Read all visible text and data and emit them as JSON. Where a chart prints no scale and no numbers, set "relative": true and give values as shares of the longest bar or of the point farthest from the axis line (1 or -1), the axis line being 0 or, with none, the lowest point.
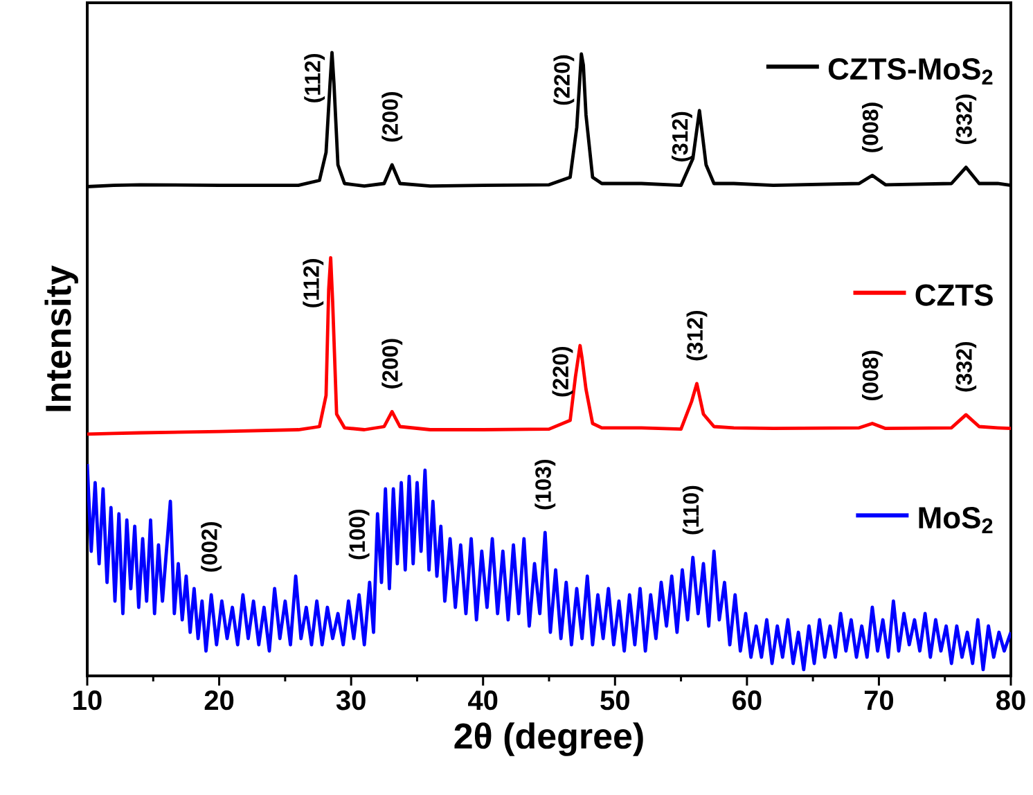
{
  "chart_data": {
    "type": "line",
    "relative": true,
    "xlabel": "2θ (degree)",
    "ylabel": "Intensity",
    "xlim": [
      10,
      80
    ],
    "xticks": [
      10,
      20,
      30,
      40,
      50,
      60,
      70,
      80
    ],
    "series": [
      {
        "name": "CZTS-MoS$_{2}$",
        "color": "#000000",
        "x": [
          10,
          12,
          14,
          20,
          26,
          27.6,
          28.1,
          28.4,
          28.55,
          28.7,
          29.0,
          29.5,
          31,
          32.5,
          33.1,
          33.7,
          36,
          40,
          45,
          46.6,
          47.1,
          47.45,
          47.6,
          47.8,
          48.3,
          49,
          52,
          55,
          55.9,
          56.4,
          56.9,
          57.5,
          59,
          62,
          68.5,
          69.5,
          70.5,
          75.5,
          76.6,
          77.6,
          79,
          80
        ],
        "values": [
          0.785,
          0.787,
          0.788,
          0.787,
          0.787,
          0.795,
          0.84,
          0.95,
          1.0,
          0.95,
          0.82,
          0.79,
          0.786,
          0.79,
          0.82,
          0.79,
          0.786,
          0.787,
          0.788,
          0.8,
          0.88,
          0.998,
          0.98,
          0.9,
          0.8,
          0.79,
          0.79,
          0.787,
          0.83,
          0.907,
          0.82,
          0.79,
          0.79,
          0.787,
          0.79,
          0.803,
          0.788,
          0.79,
          0.816,
          0.79,
          0.79,
          0.787
        ]
      },
      {
        "name": "CZTS",
        "color": "#ff0000",
        "x": [
          10,
          12,
          14,
          20,
          26,
          27.6,
          28.1,
          28.3,
          28.45,
          28.6,
          28.9,
          29.5,
          31,
          32.5,
          33.1,
          33.7,
          36,
          40,
          45,
          46.6,
          47.0,
          47.35,
          47.5,
          47.8,
          48.3,
          49,
          52,
          55,
          55.8,
          56.2,
          56.7,
          57.5,
          59,
          62,
          68.5,
          69.5,
          70.5,
          75.5,
          76.6,
          77.6,
          79,
          80
        ],
        "values": [
          0.388,
          0.389,
          0.39,
          0.392,
          0.395,
          0.4,
          0.45,
          0.62,
          0.671,
          0.6,
          0.42,
          0.398,
          0.395,
          0.4,
          0.424,
          0.4,
          0.395,
          0.395,
          0.396,
          0.41,
          0.48,
          0.53,
          0.51,
          0.46,
          0.405,
          0.398,
          0.398,
          0.396,
          0.44,
          0.469,
          0.42,
          0.4,
          0.398,
          0.397,
          0.398,
          0.405,
          0.397,
          0.398,
          0.419,
          0.4,
          0.398,
          0.397
        ]
      },
      {
        "name": "MoS$_{2}$",
        "color": "#0000ff",
        "x": [
          10.0,
          10.3,
          10.6,
          10.9,
          11.2,
          11.5,
          11.8,
          12.1,
          12.4,
          12.7,
          13.0,
          13.3,
          13.6,
          13.9,
          14.2,
          14.5,
          14.8,
          15.1,
          15.4,
          15.7,
          16.0,
          16.3,
          16.6,
          16.9,
          17.2,
          17.5,
          17.8,
          18.1,
          18.4,
          18.7,
          19.0,
          19.4,
          19.8,
          20.2,
          20.6,
          21.0,
          21.4,
          21.8,
          22.2,
          22.6,
          23.0,
          23.4,
          23.8,
          24.2,
          24.6,
          25.0,
          25.4,
          25.8,
          26.2,
          26.6,
          27.0,
          27.4,
          27.8,
          28.2,
          28.6,
          29.0,
          29.4,
          29.8,
          30.2,
          30.6,
          31.0,
          31.4,
          31.7,
          32.0,
          32.3,
          32.6,
          32.9,
          33.2,
          33.5,
          33.8,
          34.1,
          34.4,
          34.7,
          35.0,
          35.3,
          35.6,
          35.9,
          36.2,
          36.5,
          36.8,
          37.1,
          37.5,
          37.9,
          38.3,
          38.7,
          39.1,
          39.5,
          39.9,
          40.3,
          40.7,
          41.1,
          41.5,
          41.9,
          42.3,
          42.7,
          43.1,
          43.5,
          43.9,
          44.3,
          44.7,
          45.1,
          45.5,
          45.9,
          46.3,
          46.7,
          47.1,
          47.5,
          47.9,
          48.3,
          48.7,
          49.1,
          49.5,
          49.9,
          50.3,
          50.7,
          51.1,
          51.5,
          51.9,
          52.3,
          52.7,
          53.1,
          53.5,
          53.9,
          54.3,
          54.7,
          55.1,
          55.5,
          55.9,
          56.3,
          56.7,
          57.1,
          57.5,
          57.9,
          58.3,
          58.7,
          59.1,
          59.5,
          59.9,
          60.3,
          60.7,
          61.1,
          61.5,
          61.9,
          62.3,
          62.7,
          63.1,
          63.5,
          63.9,
          64.3,
          64.7,
          65.1,
          65.5,
          65.9,
          66.3,
          66.7,
          67.1,
          67.5,
          67.9,
          68.3,
          68.7,
          69.1,
          69.5,
          69.9,
          70.3,
          70.7,
          71.1,
          71.5,
          71.9,
          72.3,
          72.7,
          73.1,
          73.5,
          73.9,
          74.3,
          74.7,
          75.1,
          75.5,
          75.9,
          76.3,
          76.7,
          77.1,
          77.5,
          77.9,
          78.3,
          78.7,
          79.1,
          79.5,
          80.0
        ],
        "values": [
          0.34,
          0.2,
          0.31,
          0.18,
          0.3,
          0.15,
          0.27,
          0.12,
          0.26,
          0.1,
          0.25,
          0.14,
          0.24,
          0.11,
          0.22,
          0.12,
          0.25,
          0.1,
          0.21,
          0.12,
          0.2,
          0.28,
          0.1,
          0.18,
          0.09,
          0.16,
          0.07,
          0.14,
          0.06,
          0.12,
          0.04,
          0.13,
          0.05,
          0.12,
          0.06,
          0.11,
          0.05,
          0.13,
          0.06,
          0.12,
          0.05,
          0.11,
          0.04,
          0.14,
          0.06,
          0.12,
          0.05,
          0.16,
          0.06,
          0.11,
          0.05,
          0.12,
          0.05,
          0.11,
          0.06,
          0.1,
          0.05,
          0.12,
          0.06,
          0.13,
          0.05,
          0.15,
          0.07,
          0.26,
          0.15,
          0.3,
          0.14,
          0.3,
          0.18,
          0.31,
          0.17,
          0.32,
          0.18,
          0.31,
          0.2,
          0.33,
          0.17,
          0.28,
          0.16,
          0.24,
          0.12,
          0.22,
          0.11,
          0.21,
          0.1,
          0.22,
          0.09,
          0.2,
          0.11,
          0.22,
          0.1,
          0.2,
          0.09,
          0.21,
          0.1,
          0.22,
          0.08,
          0.18,
          0.1,
          0.23,
          0.07,
          0.17,
          0.06,
          0.15,
          0.05,
          0.14,
          0.06,
          0.16,
          0.05,
          0.13,
          0.06,
          0.14,
          0.05,
          0.12,
          0.04,
          0.13,
          0.05,
          0.14,
          0.04,
          0.13,
          0.06,
          0.15,
          0.08,
          0.16,
          0.07,
          0.17,
          0.09,
          0.19,
          0.1,
          0.18,
          0.08,
          0.2,
          0.09,
          0.15,
          0.05,
          0.13,
          0.04,
          0.1,
          0.03,
          0.08,
          0.03,
          0.09,
          0.02,
          0.08,
          0.03,
          0.09,
          0.02,
          0.07,
          0.01,
          0.08,
          0.02,
          0.09,
          0.03,
          0.08,
          0.03,
          0.1,
          0.04,
          0.09,
          0.03,
          0.08,
          0.03,
          0.11,
          0.04,
          0.09,
          0.03,
          0.12,
          0.04,
          0.1,
          0.05,
          0.09,
          0.04,
          0.1,
          0.03,
          0.09,
          0.04,
          0.08,
          0.02,
          0.08,
          0.03,
          0.07,
          0.02,
          0.09,
          0.01,
          0.08,
          0.03,
          0.07,
          0.04,
          0.07
        ]
      }
    ],
    "legend": "right",
    "annotations": [
      {
        "text": "(112)",
        "x": 28.55,
        "y": 1.0
      },
      {
        "text": "(200)",
        "x": 33.1,
        "y": 0.82
      },
      {
        "text": "(220)",
        "x": 47.45,
        "y": 0.998
      },
      {
        "text": "(312)",
        "x": 56.4,
        "y": 0.907
      },
      {
        "text": "(008)",
        "x": 69.5,
        "y": 0.803
      },
      {
        "text": "(332)",
        "x": 76.6,
        "y": 0.816
      },
      {
        "text": "(112)",
        "x": 28.45,
        "y": 0.671
      },
      {
        "text": "(200)",
        "x": 33.1,
        "y": 0.424
      },
      {
        "text": "(220)",
        "x": 47.35,
        "y": 0.53
      },
      {
        "text": "(312)",
        "x": 56.2,
        "y": 0.469
      },
      {
        "text": "(008)",
        "x": 69.5,
        "y": 0.405
      },
      {
        "text": "(332)",
        "x": 76.6,
        "y": 0.419
      },
      {
        "text": "(002)",
        "x": 19.4,
        "y": 0.13
      },
      {
        "text": "(100)",
        "x": 30.6,
        "y": 0.13
      },
      {
        "text": "(103)",
        "x": 44.7,
        "y": 0.23
      },
      {
        "text": "(110)",
        "x": 55.9,
        "y": 0.19
      }
    ]
  }
}
